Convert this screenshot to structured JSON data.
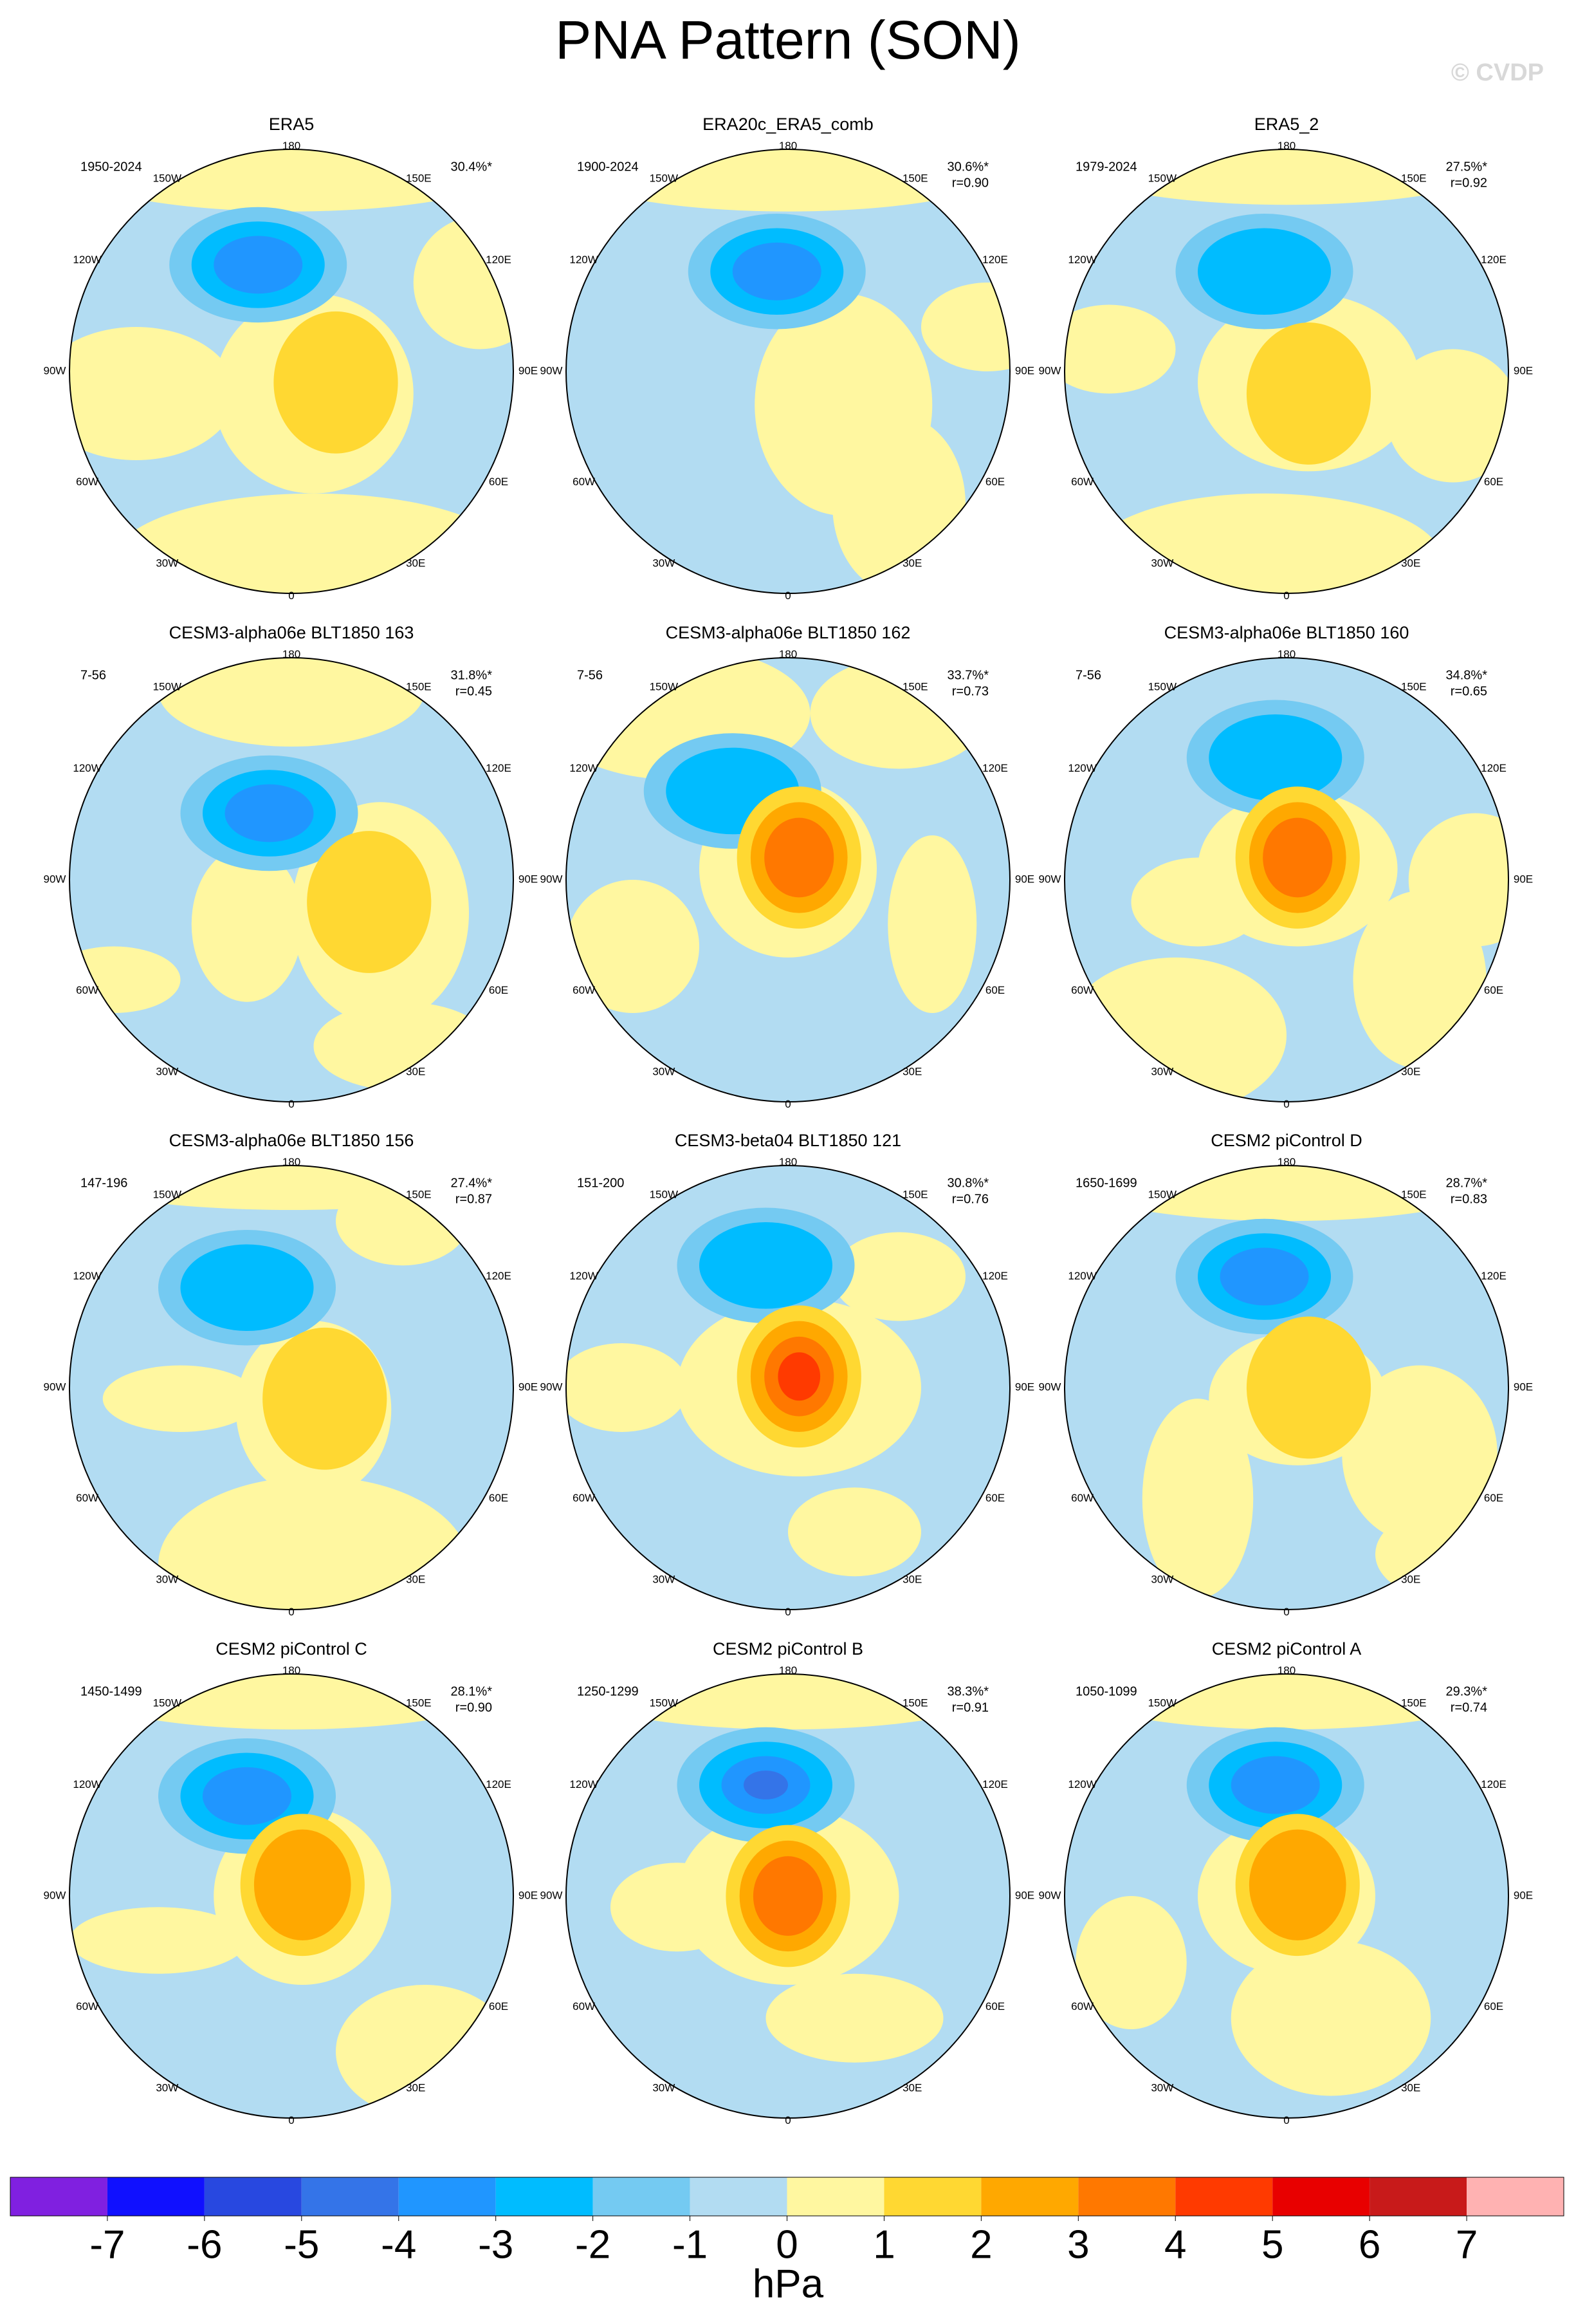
{
  "title": "PNA Pattern (SON)",
  "watermark": "© CVDP",
  "lon_labels": [
    "180",
    "150E",
    "120E",
    "90E",
    "60E",
    "30E",
    "0",
    "30W",
    "60W",
    "90W",
    "120W",
    "150W"
  ],
  "panels": [
    {
      "title": "ERA5",
      "period": "1950-2024",
      "pct": "30.4%*"
    },
    {
      "title": "ERA20c_ERA5_comb",
      "period": "1900-2024",
      "pct": "30.6%*",
      "r": "r=0.90"
    },
    {
      "title": "ERA5_2",
      "period": "1979-2024",
      "pct": "27.5%*",
      "r": "r=0.92"
    },
    {
      "title": "CESM3-alpha06e BLT1850 163",
      "period": "7-56",
      "pct": "31.8%*",
      "r": "r=0.45"
    },
    {
      "title": "CESM3-alpha06e BLT1850 162",
      "period": "7-56",
      "pct": "33.7%*",
      "r": "r=0.73"
    },
    {
      "title": "CESM3-alpha06e BLT1850 160",
      "period": "7-56",
      "pct": "34.8%*",
      "r": "r=0.65"
    },
    {
      "title": "CESM3-alpha06e BLT1850 156",
      "period": "147-196",
      "pct": "27.4%*",
      "r": "r=0.87"
    },
    {
      "title": "CESM3-beta04 BLT1850 121",
      "period": "151-200",
      "pct": "30.8%*",
      "r": "r=0.76"
    },
    {
      "title": "CESM2 piControl D",
      "period": "1650-1699",
      "pct": "28.7%*",
      "r": "r=0.83"
    },
    {
      "title": "CESM2 piControl C",
      "period": "1450-1499",
      "pct": "28.1%*",
      "r": "r=0.90"
    },
    {
      "title": "CESM2 piControl B",
      "period": "1250-1299",
      "pct": "38.3%*",
      "r": "r=0.91"
    },
    {
      "title": "CESM2 piControl A",
      "period": "1050-1099",
      "pct": "29.3%*",
      "r": "r=0.74"
    }
  ],
  "colorbar": {
    "colors": [
      "#8020e0",
      "#1010ff",
      "#2848e0",
      "#3474e8",
      "#2096ff",
      "#00bcff",
      "#74caf2",
      "#b2dcf2",
      "#fff7a0",
      "#ffd832",
      "#ffa800",
      "#ff7800",
      "#ff3a00",
      "#e80000",
      "#c81a1a",
      "#ffb2b2"
    ],
    "ticks": [
      -7,
      -6,
      -5,
      -4,
      -3,
      -2,
      -1,
      0,
      1,
      2,
      3,
      4,
      5,
      6,
      7
    ],
    "unit": "hPa"
  }
}
